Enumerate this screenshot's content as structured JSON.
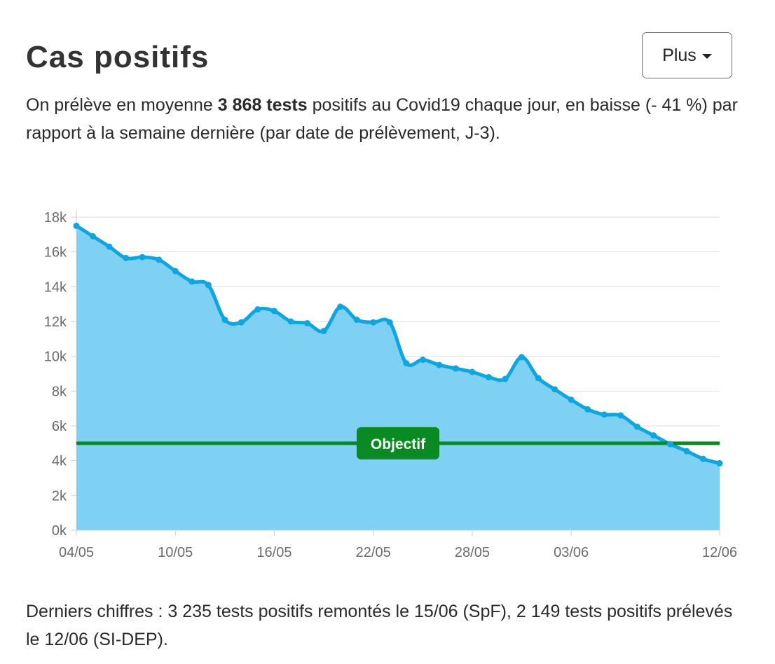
{
  "header": {
    "title": "Cas positifs",
    "more_label": "Plus"
  },
  "summary": {
    "prefix": "On prélève en moyenne ",
    "highlight": "3 868 tests",
    "suffix": " positifs au Covid19 chaque jour, en baisse (- 41 %) par rapport à la semaine dernière (par date de prélèvement, J-3)."
  },
  "footer": {
    "text": "Derniers chiffres : 3 235 tests positifs remontés le 15/06 (SpF), 2 149 tests positifs prélevés le 12/06 (SI-DEP)."
  },
  "colors": {
    "series_line": "#0ea5e0",
    "series_fill": "#7fd1f3",
    "objective": "#0b8a24",
    "grid": "#dddddd"
  },
  "chart_data": {
    "type": "area",
    "title": "",
    "xlabel": "",
    "ylabel": "",
    "ylim": [
      0,
      18000
    ],
    "y_ticks": [
      0,
      2000,
      4000,
      6000,
      8000,
      10000,
      12000,
      14000,
      16000,
      18000
    ],
    "y_tick_labels": [
      "0k",
      "2k",
      "4k",
      "6k",
      "8k",
      "10k",
      "12k",
      "14k",
      "16k",
      "18k"
    ],
    "x_tick_labels": [
      "04/05",
      "10/05",
      "16/05",
      "22/05",
      "28/05",
      "03/06",
      "12/06"
    ],
    "x_tick_dates": [
      "04/05",
      "10/05",
      "16/05",
      "22/05",
      "28/05",
      "03/06",
      "12/06"
    ],
    "grid": true,
    "x": [
      "04/05",
      "05/05",
      "06/05",
      "07/05",
      "08/05",
      "09/05",
      "10/05",
      "11/05",
      "12/05",
      "13/05",
      "14/05",
      "15/05",
      "16/05",
      "17/05",
      "18/05",
      "19/05",
      "20/05",
      "21/05",
      "22/05",
      "23/05",
      "24/05",
      "25/05",
      "26/05",
      "27/05",
      "28/05",
      "29/05",
      "30/05",
      "31/05",
      "01/06",
      "02/06",
      "03/06",
      "04/06",
      "05/06",
      "06/06",
      "07/06",
      "08/06",
      "09/06",
      "10/06",
      "11/06",
      "12/06"
    ],
    "series": [
      {
        "values": [
          17500,
          16900,
          16300,
          15650,
          15700,
          15550,
          14900,
          14300,
          14100,
          12100,
          11950,
          12700,
          12600,
          12000,
          11900,
          11450,
          12850,
          12100,
          11950,
          11950,
          9600,
          9800,
          9500,
          9300,
          9100,
          8800,
          8700,
          9950,
          8750,
          8100,
          7500,
          6950,
          6650,
          6600,
          5950,
          5450,
          4950,
          4550,
          4100,
          3850
        ]
      }
    ],
    "objective": {
      "label": "Objectif",
      "value": 5000
    }
  }
}
